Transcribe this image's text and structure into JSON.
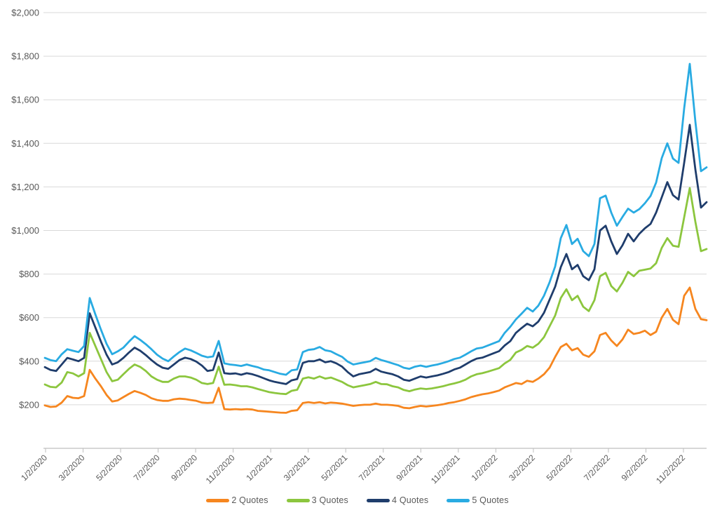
{
  "page": {
    "background": "#ffffff",
    "title": ""
  },
  "colors": {
    "gridline": "#d9d9d9",
    "axis_line": "#bfbfbf",
    "tick_mark": "#bfbfbf",
    "label_text": "#595959"
  },
  "chart_data": {
    "type": "line",
    "title": "",
    "xlabel": "",
    "ylabel": "",
    "grid": "horizontal",
    "ylim": [
      0,
      2000
    ],
    "y_tick_step": 200,
    "y_tick_labels": [
      "$200",
      "$400",
      "$600",
      "$800",
      "$1,000",
      "$1,200",
      "$1,400",
      "$1,600",
      "$1,800",
      "$2,000"
    ],
    "x_tick_labels": [
      "1/2/2020",
      "3/2/2020",
      "5/2/2020",
      "7/2/2020",
      "9/2/2020",
      "11/2/2020",
      "1/2/2021",
      "3/2/2021",
      "5/2/2021",
      "7/2/2021",
      "9/2/2021",
      "11/2/2021",
      "1/2/2022",
      "3/2/2022",
      "5/2/2022",
      "7/2/2022",
      "9/2/2022",
      "11/2/2022"
    ],
    "legend": {
      "position": "bottom"
    },
    "series": [
      {
        "name": "2 Quotes",
        "color": "#F6861F",
        "values": [
          197,
          190,
          192,
          210,
          240,
          232,
          230,
          240,
          360,
          320,
          285,
          245,
          215,
          220,
          235,
          250,
          263,
          255,
          245,
          230,
          222,
          218,
          218,
          225,
          228,
          226,
          222,
          218,
          210,
          208,
          210,
          278,
          180,
          178,
          180,
          178,
          180,
          178,
          172,
          170,
          168,
          166,
          164,
          163,
          172,
          175,
          208,
          212,
          208,
          212,
          206,
          210,
          208,
          205,
          200,
          195,
          198,
          200,
          200,
          205,
          200,
          200,
          198,
          195,
          186,
          184,
          190,
          195,
          192,
          195,
          198,
          202,
          208,
          212,
          218,
          225,
          235,
          242,
          248,
          252,
          258,
          265,
          280,
          290,
          300,
          295,
          310,
          305,
          320,
          340,
          370,
          420,
          465,
          480,
          450,
          460,
          430,
          420,
          445,
          520,
          530,
          495,
          470,
          500,
          545,
          525,
          530,
          540,
          520,
          535,
          600,
          640,
          590,
          570,
          700,
          738,
          640,
          593,
          588
        ]
      },
      {
        "name": "3 Quotes",
        "color": "#8CC63E",
        "values": [
          293,
          282,
          280,
          302,
          350,
          344,
          330,
          345,
          530,
          470,
          410,
          350,
          308,
          315,
          340,
          365,
          385,
          374,
          355,
          330,
          315,
          305,
          305,
          320,
          330,
          330,
          325,
          315,
          300,
          295,
          300,
          375,
          292,
          293,
          290,
          285,
          285,
          280,
          272,
          265,
          258,
          254,
          251,
          249,
          264,
          269,
          320,
          326,
          320,
          330,
          320,
          325,
          315,
          305,
          290,
          280,
          285,
          290,
          295,
          305,
          295,
          294,
          285,
          280,
          268,
          262,
          270,
          275,
          272,
          275,
          280,
          285,
          292,
          298,
          305,
          315,
          330,
          340,
          345,
          352,
          360,
          368,
          390,
          406,
          440,
          452,
          470,
          462,
          480,
          510,
          560,
          610,
          690,
          730,
          680,
          700,
          650,
          630,
          680,
          790,
          805,
          745,
          720,
          760,
          810,
          790,
          815,
          820,
          825,
          850,
          920,
          965,
          930,
          925,
          1060,
          1195,
          1040,
          905,
          915
        ]
      },
      {
        "name": "4 Quotes",
        "color": "#1F3D6C",
        "values": [
          373,
          360,
          355,
          385,
          415,
          408,
          400,
          415,
          620,
          555,
          490,
          430,
          385,
          395,
          415,
          440,
          462,
          448,
          428,
          405,
          385,
          370,
          365,
          385,
          405,
          416,
          410,
          398,
          380,
          355,
          360,
          440,
          345,
          342,
          344,
          338,
          345,
          340,
          332,
          322,
          312,
          305,
          300,
          295,
          312,
          318,
          392,
          400,
          400,
          408,
          395,
          400,
          390,
          375,
          350,
          330,
          340,
          345,
          350,
          365,
          352,
          346,
          340,
          330,
          315,
          310,
          320,
          330,
          325,
          330,
          335,
          342,
          350,
          362,
          370,
          385,
          400,
          412,
          416,
          426,
          436,
          446,
          472,
          492,
          530,
          552,
          572,
          560,
          582,
          622,
          682,
          742,
          832,
          892,
          822,
          842,
          790,
          772,
          822,
          1000,
          1022,
          950,
          892,
          932,
          985,
          950,
          985,
          1010,
          1030,
          1082,
          1152,
          1222,
          1162,
          1142,
          1310,
          1485,
          1280,
          1105,
          1130
        ]
      },
      {
        "name": "5 Quotes",
        "color": "#29ABE2",
        "values": [
          415,
          405,
          400,
          432,
          455,
          448,
          442,
          470,
          690,
          615,
          545,
          480,
          432,
          445,
          462,
          490,
          515,
          498,
          478,
          455,
          430,
          412,
          400,
          422,
          442,
          458,
          450,
          438,
          425,
          418,
          422,
          493,
          390,
          385,
          382,
          378,
          385,
          378,
          372,
          362,
          358,
          350,
          342,
          338,
          358,
          362,
          442,
          452,
          455,
          465,
          450,
          445,
          432,
          420,
          398,
          385,
          390,
          395,
          400,
          415,
          405,
          398,
          390,
          382,
          370,
          365,
          375,
          380,
          374,
          380,
          385,
          392,
          400,
          410,
          416,
          430,
          445,
          458,
          462,
          472,
          482,
          492,
          530,
          558,
          592,
          618,
          645,
          628,
          655,
          700,
          762,
          835,
          965,
          1025,
          938,
          962,
          905,
          882,
          938,
          1148,
          1160,
          1082,
          1022,
          1062,
          1100,
          1082,
          1098,
          1125,
          1158,
          1220,
          1332,
          1400,
          1330,
          1310,
          1560,
          1765,
          1500,
          1272,
          1290
        ]
      }
    ]
  }
}
